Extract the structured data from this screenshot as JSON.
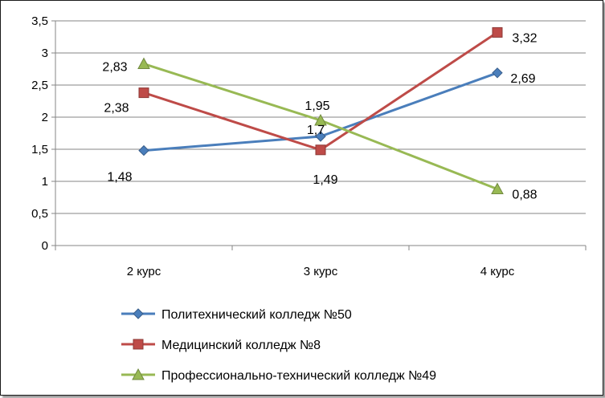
{
  "chart_data": {
    "type": "line",
    "categories": [
      "2 курс",
      "3 курс",
      "4 курс"
    ],
    "ylim": [
      0,
      3.5
    ],
    "y_ticks": [
      "0",
      "0,5",
      "1",
      "1,5",
      "2",
      "2,5",
      "3",
      "3,5"
    ],
    "grid": "horizontal",
    "legend_position": "bottom",
    "series": [
      {
        "name": "Политехнический колледж №50",
        "color": "#4a7ebb",
        "marker": "diamond",
        "values": [
          1.48,
          1.7,
          2.69
        ],
        "labels": [
          "1,48",
          "1,7",
          "2,69"
        ]
      },
      {
        "name": "Медицинский колледж №8",
        "color": "#be4b48",
        "marker": "square",
        "values": [
          2.38,
          1.49,
          3.32
        ],
        "labels": [
          "2,38",
          "1,49",
          "3,32"
        ]
      },
      {
        "name": "Профессионально-технический колледж №49",
        "color": "#98b954",
        "marker": "triangle",
        "values": [
          2.83,
          1.95,
          0.88
        ],
        "labels": [
          "2,83",
          "1,95",
          "0,88"
        ]
      }
    ]
  }
}
